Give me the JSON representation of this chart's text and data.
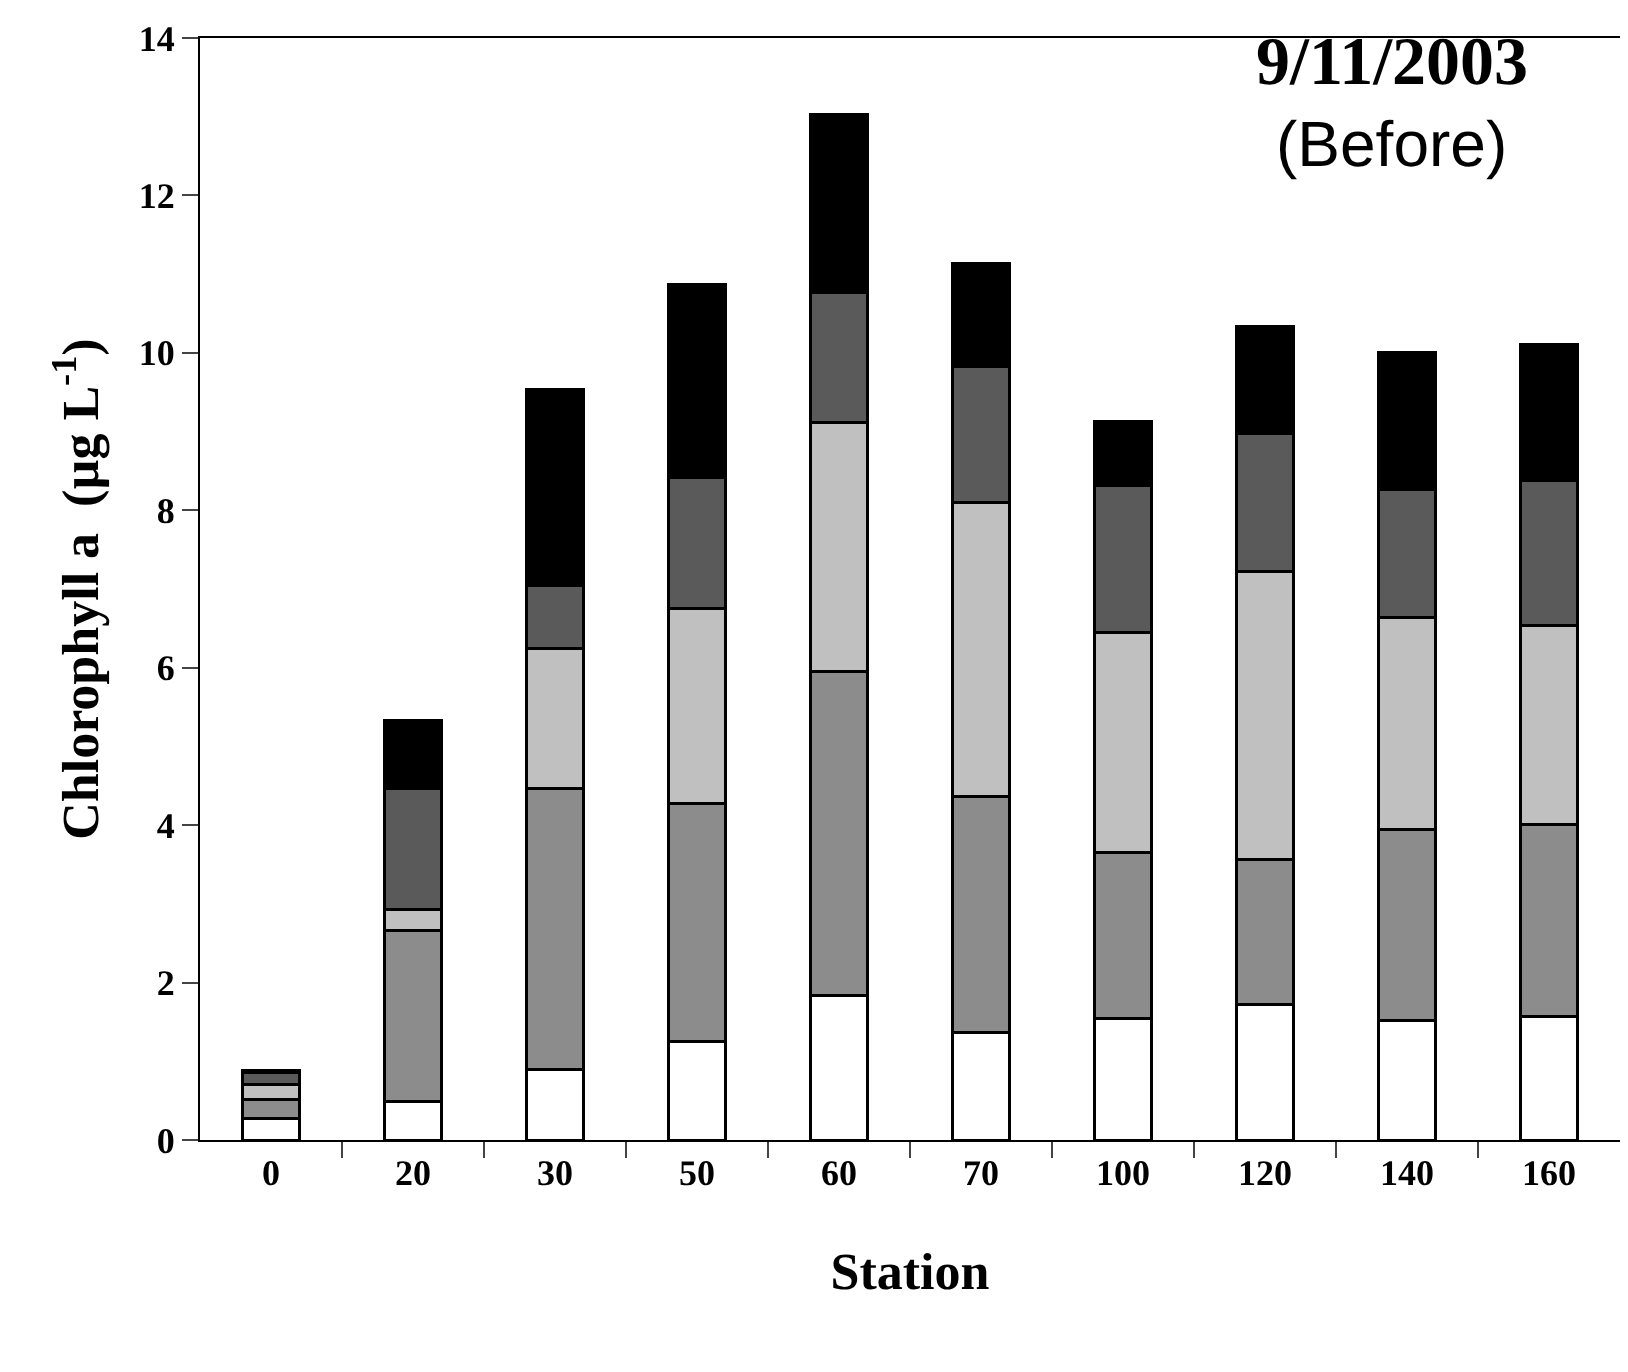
{
  "chart_data": {
    "type": "bar",
    "stacked": true,
    "title": "9/11/2003",
    "subtitle": "(Before)",
    "xlabel": "Station",
    "ylabel": "Chlorophyll a  (µg L$^{-1}$)",
    "categories": [
      "0",
      "20",
      "30",
      "50",
      "60",
      "70",
      "100",
      "120",
      "140",
      "160"
    ],
    "series": [
      {
        "color": "#ffffff",
        "values": [
          0.27,
          0.49,
          0.89,
          1.25,
          1.84,
          1.37,
          1.54,
          1.72,
          1.52,
          1.57
        ]
      },
      {
        "color": "#8c8c8c",
        "values": [
          0.25,
          2.17,
          3.58,
          3.03,
          4.11,
          2.99,
          2.11,
          1.85,
          2.43,
          2.44
        ]
      },
      {
        "color": "#c0c0c0",
        "values": [
          0.18,
          0.27,
          1.77,
          2.47,
          3.17,
          3.74,
          2.8,
          3.65,
          2.69,
          2.53
        ]
      },
      {
        "color": "#5a5a5a",
        "values": [
          0.16,
          1.54,
          0.8,
          1.67,
          1.65,
          1.73,
          1.87,
          1.75,
          1.63,
          1.84
        ]
      },
      {
        "color": "#000000",
        "values": [
          0.02,
          0.86,
          2.5,
          2.45,
          2.26,
          1.31,
          0.81,
          1.36,
          1.73,
          1.73
        ]
      }
    ],
    "ylim": [
      0,
      14
    ],
    "yticks": [
      0,
      2,
      4,
      6,
      8,
      10,
      12,
      14
    ]
  }
}
